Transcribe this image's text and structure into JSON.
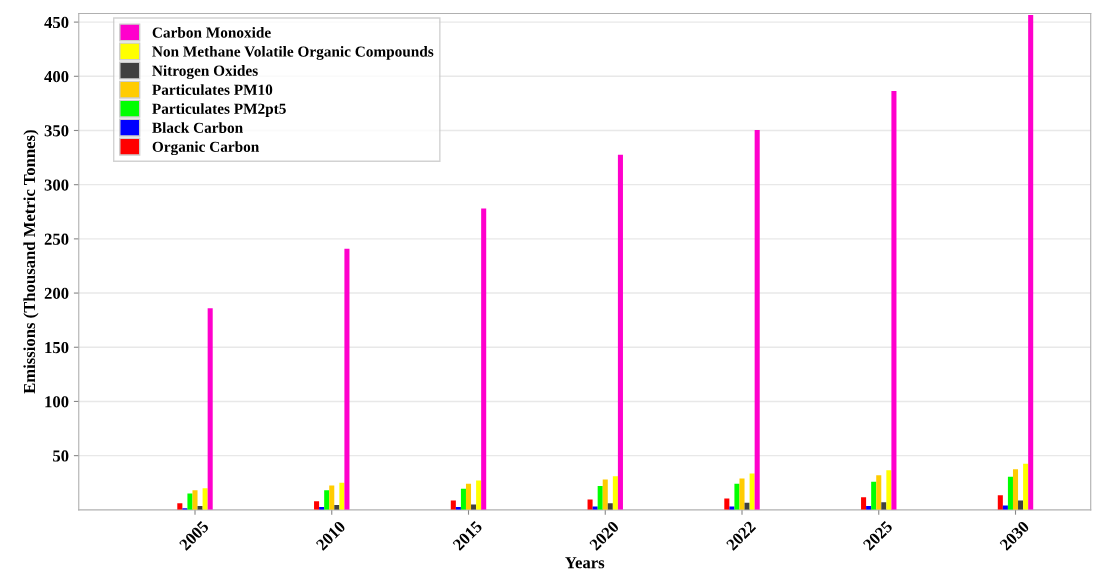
{
  "chart_data": {
    "type": "bar",
    "xlabel": "Years",
    "ylabel": "Emissions (Thousand Metric Tonnes)",
    "categories": [
      "2005",
      "2010",
      "2015",
      "2020",
      "2022",
      "2025",
      "2030"
    ],
    "series": [
      {
        "name": "Organic Carbon",
        "color": "#ff0000",
        "values": [
          6,
          8,
          8.5,
          9.5,
          10.5,
          11.5,
          13.5
        ]
      },
      {
        "name": "Black Carbon",
        "color": "#0000ff",
        "values": [
          1.5,
          2.5,
          2.5,
          3,
          3,
          3.5,
          4
        ]
      },
      {
        "name": "Particulates PM2pt5",
        "color": "#00ff00",
        "values": [
          15,
          18,
          19.5,
          22,
          24,
          26,
          30.5
        ]
      },
      {
        "name": "Particulates PM10",
        "color": "#ffcc00",
        "values": [
          18,
          22.5,
          24,
          28,
          29,
          32,
          37.5
        ]
      },
      {
        "name": "Nitrogen Oxides",
        "color": "#404040",
        "values": [
          3.5,
          4.5,
          5,
          6,
          6.5,
          7,
          8.5
        ]
      },
      {
        "name": "Non Methane Volatile Organic Compounds",
        "color": "#ffff00",
        "values": [
          20,
          25,
          27,
          31,
          33.5,
          36.5,
          42.5
        ]
      },
      {
        "name": "Carbon Monoxide",
        "color": "#ff00cc",
        "values": [
          186,
          241,
          278,
          327.5,
          350.5,
          386.5,
          456.5
        ]
      }
    ],
    "ylim": [
      0,
      458
    ],
    "yticks": [
      50,
      100,
      150,
      200,
      250,
      300,
      350,
      400,
      450
    ],
    "grid": "y",
    "legend": "top left"
  }
}
